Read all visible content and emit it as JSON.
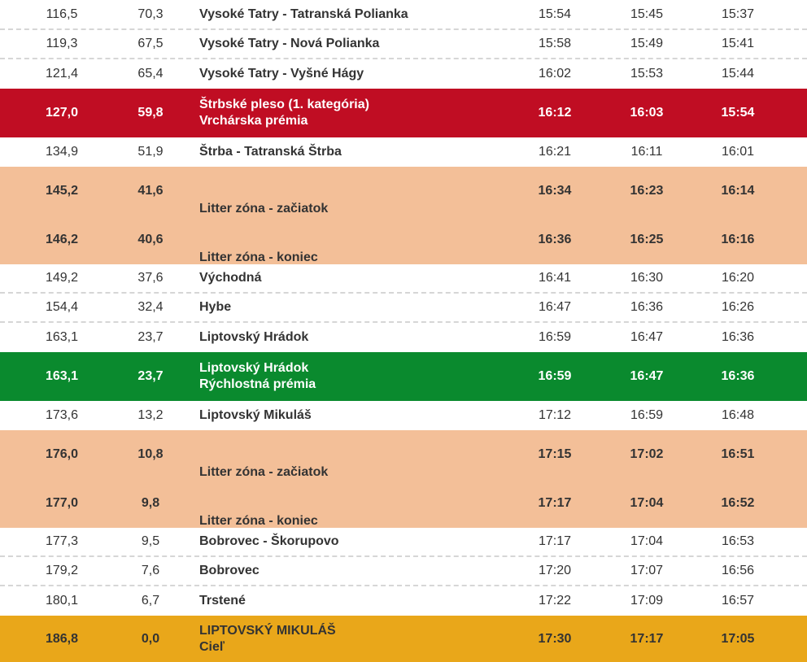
{
  "rows": [
    {
      "km": "116,5",
      "remaining": "70,3",
      "place": [
        "Vysoké Tatry - Tatranská Polianka"
      ],
      "t1": "15:54",
      "t2": "15:45",
      "t3": "15:37",
      "style": "plain"
    },
    {
      "km": "119,3",
      "remaining": "67,5",
      "place": [
        "Vysoké Tatry - Nová Polianka"
      ],
      "t1": "15:58",
      "t2": "15:49",
      "t3": "15:41",
      "style": "plain"
    },
    {
      "km": "121,4",
      "remaining": "65,4",
      "place": [
        "Vysoké Tatry - Vyšné Hágy"
      ],
      "t1": "16:02",
      "t2": "15:53",
      "t3": "15:44",
      "style": "plain"
    },
    {
      "km": "127,0",
      "remaining": "59,8",
      "place": [
        "Štrbské pleso (1. kategória)",
        "Vrchárska prémia"
      ],
      "t1": "16:12",
      "t2": "16:03",
      "t3": "15:54",
      "style": "red"
    },
    {
      "km": "134,9",
      "remaining": "51,9",
      "place": [
        "Štrba - Tatranská Štrba"
      ],
      "t1": "16:21",
      "t2": "16:11",
      "t3": "16:01",
      "style": "plain"
    },
    {
      "km": "145,2",
      "remaining": "41,6",
      "place": [
        "Litter zóna - začiatok"
      ],
      "t1": "16:34",
      "t2": "16:23",
      "t3": "16:14",
      "style": "peach"
    },
    {
      "km": "146,2",
      "remaining": "40,6",
      "place": [
        "Litter zóna - koniec"
      ],
      "t1": "16:36",
      "t2": "16:25",
      "t3": "16:16",
      "style": "peach"
    },
    {
      "km": "149,2",
      "remaining": "37,6",
      "place": [
        "Východná"
      ],
      "t1": "16:41",
      "t2": "16:30",
      "t3": "16:20",
      "style": "plain"
    },
    {
      "km": "154,4",
      "remaining": "32,4",
      "place": [
        "Hybe"
      ],
      "t1": "16:47",
      "t2": "16:36",
      "t3": "16:26",
      "style": "plain"
    },
    {
      "km": "163,1",
      "remaining": "23,7",
      "place": [
        "Liptovský Hrádok"
      ],
      "t1": "16:59",
      "t2": "16:47",
      "t3": "16:36",
      "style": "plain"
    },
    {
      "km": "163,1",
      "remaining": "23,7",
      "place": [
        "Liptovský Hrádok",
        "Rýchlostná prémia"
      ],
      "t1": "16:59",
      "t2": "16:47",
      "t3": "16:36",
      "style": "green"
    },
    {
      "km": "173,6",
      "remaining": "13,2",
      "place": [
        "Liptovský Mikuláš"
      ],
      "t1": "17:12",
      "t2": "16:59",
      "t3": "16:48",
      "style": "plain"
    },
    {
      "km": "176,0",
      "remaining": "10,8",
      "place": [
        "Litter zóna - začiatok"
      ],
      "t1": "17:15",
      "t2": "17:02",
      "t3": "16:51",
      "style": "peach"
    },
    {
      "km": "177,0",
      "remaining": "9,8",
      "place": [
        "Litter zóna - koniec"
      ],
      "t1": "17:17",
      "t2": "17:04",
      "t3": "16:52",
      "style": "peach"
    },
    {
      "km": "177,3",
      "remaining": "9,5",
      "place": [
        "Bobrovec - Škorupovo"
      ],
      "t1": "17:17",
      "t2": "17:04",
      "t3": "16:53",
      "style": "plain"
    },
    {
      "km": "179,2",
      "remaining": "7,6",
      "place": [
        "Bobrovec"
      ],
      "t1": "17:20",
      "t2": "17:07",
      "t3": "16:56",
      "style": "plain"
    },
    {
      "km": "180,1",
      "remaining": "6,7",
      "place": [
        "Trstené"
      ],
      "t1": "17:22",
      "t2": "17:09",
      "t3": "16:57",
      "style": "plain"
    },
    {
      "km": "186,8",
      "remaining": "0,0",
      "place": [
        "LIPTOVSKÝ MIKULÁŠ",
        "Cieľ"
      ],
      "t1": "17:30",
      "t2": "17:17",
      "t3": "17:05",
      "style": "gold"
    }
  ]
}
